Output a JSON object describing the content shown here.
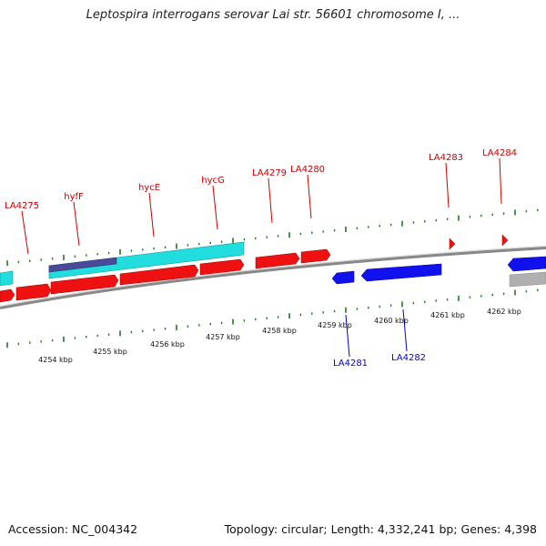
{
  "header": {
    "title": "Leptospira interrogans serovar Lai str. 56601 chromosome I, ..."
  },
  "footer": {
    "accession": "Accession: NC_004342",
    "summary": "Topology: circular; Length: 4,332,241 bp; Genes: 4,398"
  },
  "colors": {
    "forward_gene": "#ee1111",
    "reverse_gene": "#1111ee",
    "rna_feature": "#22dddd",
    "dark_feature": "#4a4a99",
    "grey_feature": "#b0b0b0",
    "forward_label": "#cc0000",
    "reverse_label": "#0000cc",
    "tick": "#227722",
    "backbone": "#888888"
  },
  "scale": {
    "unit": "kbp",
    "labels": [
      {
        "kbp": 4254,
        "text": "4254 kbp"
      },
      {
        "kbp": 4255,
        "text": "4255 kbp"
      },
      {
        "kbp": 4256,
        "text": "4256 kbp"
      },
      {
        "kbp": 4257,
        "text": "4257 kbp"
      },
      {
        "kbp": 4258,
        "text": "4258 kbp"
      },
      {
        "kbp": 4259,
        "text": "4259 kbp"
      },
      {
        "kbp": 4260,
        "text": "4260 kbp"
      },
      {
        "kbp": 4261,
        "text": "4261 kbp"
      },
      {
        "kbp": 4262,
        "text": "4262 kbp"
      }
    ]
  },
  "genes_forward": [
    {
      "name": "LA4275"
    },
    {
      "name": "hyfF"
    },
    {
      "name": "hycE"
    },
    {
      "name": "hycG"
    },
    {
      "name": "LA4279"
    },
    {
      "name": "LA4280"
    },
    {
      "name": "LA4283"
    },
    {
      "name": "LA4284"
    }
  ],
  "genes_reverse": [
    {
      "name": "LA4281"
    },
    {
      "name": "LA4282"
    }
  ]
}
